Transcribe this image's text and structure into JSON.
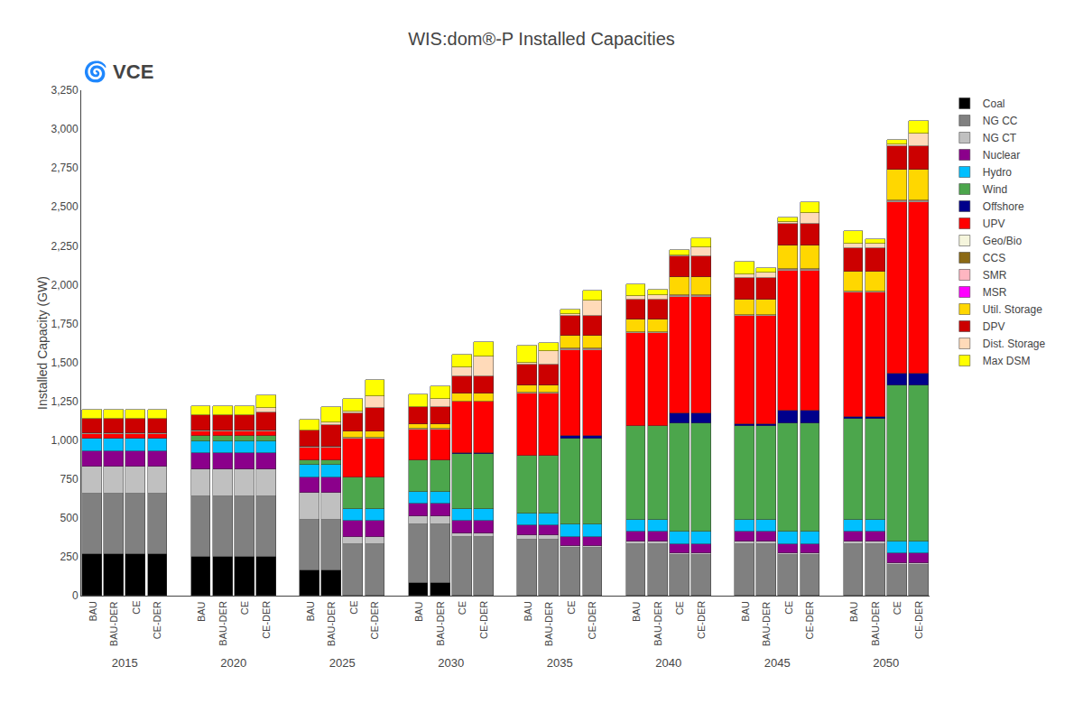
{
  "chart_data": {
    "type": "bar",
    "stacked": true,
    "title": "WIS:dom®-P Installed Capacities",
    "ylabel": "Installed Capacity (GW)",
    "annotations": [
      "🌀 VCE"
    ],
    "categories": [
      "2015",
      "2020",
      "2025",
      "2030",
      "2035",
      "2040",
      "2045",
      "2050"
    ],
    "groups": [
      "BAU",
      "BAU-DER",
      "CE",
      "CE-DER"
    ],
    "ylim": [
      0,
      3250
    ],
    "yticks": [
      0,
      250,
      500,
      750,
      {
        "value": 1000,
        "label": "1,000"
      },
      {
        "value": 1250,
        "label": "1,250"
      },
      {
        "value": 1500,
        "label": "1,500"
      },
      {
        "value": 1750,
        "label": "1,750"
      },
      {
        "value": 2000,
        "label": "2,000"
      },
      {
        "value": 2250,
        "label": "2,250"
      },
      {
        "value": 2500,
        "label": "2,500"
      },
      {
        "value": 2750,
        "label": "2,750"
      },
      {
        "value": 3000,
        "label": "3,000"
      },
      {
        "value": 3250,
        "label": "3,250"
      }
    ],
    "grid": false,
    "legend": "right",
    "series": [
      {
        "name": "Coal",
        "color": "#000000",
        "values": [
          [
            265,
            265,
            265,
            265
          ],
          [
            250,
            250,
            250,
            250
          ],
          [
            160,
            160,
            0,
            0
          ],
          [
            80,
            80,
            0,
            0
          ],
          [
            0,
            0,
            0,
            0
          ],
          [
            0,
            0,
            0,
            0
          ],
          [
            0,
            0,
            0,
            0
          ],
          [
            0,
            0,
            0,
            0
          ]
        ]
      },
      {
        "name": "NG CC",
        "color": "#808080",
        "values": [
          [
            390,
            390,
            390,
            390
          ],
          [
            390,
            390,
            390,
            390
          ],
          [
            330,
            330,
            330,
            330
          ],
          [
            380,
            380,
            380,
            380
          ],
          [
            360,
            360,
            310,
            310
          ],
          [
            330,
            330,
            260,
            260
          ],
          [
            330,
            330,
            260,
            260
          ],
          [
            330,
            330,
            200,
            200
          ]
        ]
      },
      {
        "name": "NG CT",
        "color": "#C0C0C0",
        "values": [
          [
            175,
            175,
            175,
            175
          ],
          [
            175,
            175,
            175,
            175
          ],
          [
            170,
            170,
            50,
            50
          ],
          [
            50,
            50,
            20,
            20
          ],
          [
            30,
            30,
            10,
            10
          ],
          [
            20,
            20,
            10,
            10
          ],
          [
            20,
            20,
            10,
            10
          ],
          [
            20,
            20,
            10,
            10
          ]
        ]
      },
      {
        "name": "Nuclear",
        "color": "#8B008B",
        "values": [
          [
            100,
            100,
            100,
            100
          ],
          [
            100,
            100,
            100,
            100
          ],
          [
            100,
            100,
            100,
            100
          ],
          [
            80,
            80,
            80,
            80
          ],
          [
            60,
            60,
            60,
            60
          ],
          [
            60,
            60,
            60,
            60
          ],
          [
            60,
            60,
            60,
            60
          ],
          [
            60,
            60,
            60,
            60
          ]
        ]
      },
      {
        "name": "Hydro",
        "color": "#00BFFF",
        "values": [
          [
            80,
            80,
            80,
            80
          ],
          [
            80,
            80,
            80,
            80
          ],
          [
            80,
            80,
            80,
            80
          ],
          [
            80,
            80,
            80,
            80
          ],
          [
            80,
            80,
            80,
            80
          ],
          [
            80,
            80,
            80,
            80
          ],
          [
            80,
            80,
            80,
            80
          ],
          [
            80,
            80,
            80,
            80
          ]
        ]
      },
      {
        "name": "Wind",
        "color": "#4CA64C",
        "values": [
          [
            0,
            0,
            0,
            0
          ],
          [
            30,
            30,
            30,
            30
          ],
          [
            30,
            30,
            200,
            200
          ],
          [
            200,
            200,
            350,
            350
          ],
          [
            370,
            370,
            550,
            550
          ],
          [
            600,
            600,
            700,
            700
          ],
          [
            600,
            600,
            700,
            700
          ],
          [
            650,
            650,
            1000,
            1000
          ]
        ]
      },
      {
        "name": "Offshore",
        "color": "#00008B",
        "values": [
          [
            0,
            0,
            0,
            0
          ],
          [
            0,
            0,
            0,
            0
          ],
          [
            0,
            0,
            0,
            0
          ],
          [
            0,
            0,
            5,
            5
          ],
          [
            0,
            0,
            20,
            20
          ],
          [
            0,
            0,
            60,
            60
          ],
          [
            10,
            10,
            80,
            80
          ],
          [
            10,
            10,
            80,
            80
          ]
        ]
      },
      {
        "name": "UPV",
        "color": "#FF0000",
        "values": [
          [
            30,
            30,
            30,
            30
          ],
          [
            30,
            30,
            30,
            30
          ],
          [
            80,
            80,
            250,
            250
          ],
          [
            200,
            200,
            330,
            330
          ],
          [
            400,
            400,
            550,
            550
          ],
          [
            600,
            600,
            750,
            750
          ],
          [
            700,
            700,
            900,
            900
          ],
          [
            800,
            800,
            1100,
            1100
          ]
        ]
      },
      {
        "name": "Geo/Bio",
        "color": "#F5F5DC",
        "values": [
          [
            5,
            5,
            5,
            5
          ],
          [
            5,
            5,
            5,
            5
          ],
          [
            5,
            5,
            5,
            5
          ],
          [
            5,
            5,
            5,
            5
          ],
          [
            5,
            5,
            5,
            5
          ],
          [
            5,
            5,
            5,
            5
          ],
          [
            5,
            5,
            5,
            5
          ],
          [
            5,
            5,
            5,
            5
          ]
        ]
      },
      {
        "name": "CCS",
        "color": "#8B6914",
        "values": [
          [
            0,
            0,
            0,
            0
          ],
          [
            0,
            0,
            0,
            0
          ],
          [
            0,
            0,
            0,
            0
          ],
          [
            0,
            0,
            0,
            0
          ],
          [
            0,
            0,
            0,
            0
          ],
          [
            0,
            0,
            0,
            0
          ],
          [
            0,
            0,
            0,
            0
          ],
          [
            0,
            0,
            0,
            0
          ]
        ]
      },
      {
        "name": "SMR",
        "color": "#FFB6C1",
        "values": [
          [
            0,
            0,
            0,
            0
          ],
          [
            0,
            0,
            0,
            0
          ],
          [
            0,
            0,
            0,
            0
          ],
          [
            0,
            0,
            0,
            0
          ],
          [
            0,
            0,
            5,
            5
          ],
          [
            0,
            0,
            5,
            5
          ],
          [
            0,
            0,
            5,
            5
          ],
          [
            0,
            0,
            5,
            5
          ]
        ]
      },
      {
        "name": "MSR",
        "color": "#FF00FF",
        "values": [
          [
            0,
            0,
            0,
            0
          ],
          [
            0,
            0,
            0,
            0
          ],
          [
            0,
            0,
            0,
            0
          ],
          [
            0,
            0,
            0,
            0
          ],
          [
            0,
            0,
            0,
            0
          ],
          [
            0,
            0,
            0,
            0
          ],
          [
            0,
            0,
            0,
            0
          ],
          [
            0,
            0,
            0,
            0
          ]
        ]
      },
      {
        "name": "Util. Storage",
        "color": "#FFD700",
        "values": [
          [
            0,
            0,
            0,
            0
          ],
          [
            0,
            0,
            0,
            0
          ],
          [
            0,
            0,
            40,
            40
          ],
          [
            30,
            30,
            50,
            50
          ],
          [
            50,
            50,
            80,
            80
          ],
          [
            80,
            80,
            120,
            120
          ],
          [
            100,
            100,
            150,
            150
          ],
          [
            130,
            130,
            200,
            200
          ]
        ]
      },
      {
        "name": "DPV",
        "color": "#CC0000",
        "values": [
          [
            90,
            90,
            90,
            90
          ],
          [
            100,
            100,
            100,
            120
          ],
          [
            105,
            140,
            120,
            150
          ],
          [
            110,
            110,
            110,
            110
          ],
          [
            130,
            130,
            130,
            130
          ],
          [
            130,
            130,
            130,
            130
          ],
          [
            140,
            140,
            140,
            140
          ],
          [
            150,
            150,
            150,
            150
          ]
        ]
      },
      {
        "name": "Dist. Storage",
        "color": "#FFDAB9",
        "values": [
          [
            0,
            0,
            0,
            0
          ],
          [
            0,
            0,
            0,
            30
          ],
          [
            0,
            20,
            10,
            80
          ],
          [
            0,
            50,
            60,
            130
          ],
          [
            10,
            90,
            10,
            100
          ],
          [
            20,
            30,
            10,
            60
          ],
          [
            20,
            30,
            10,
            70
          ],
          [
            30,
            30,
            10,
            80
          ]
        ]
      },
      {
        "name": "Max DSM",
        "color": "#FFFF00",
        "values": [
          [
            60,
            60,
            60,
            60
          ],
          [
            60,
            60,
            60,
            80
          ],
          [
            70,
            100,
            80,
            100
          ],
          [
            80,
            80,
            80,
            90
          ],
          [
            110,
            50,
            30,
            60
          ],
          [
            80,
            30,
            30,
            60
          ],
          [
            80,
            30,
            30,
            70
          ],
          [
            80,
            30,
            30,
            80
          ]
        ]
      }
    ]
  }
}
